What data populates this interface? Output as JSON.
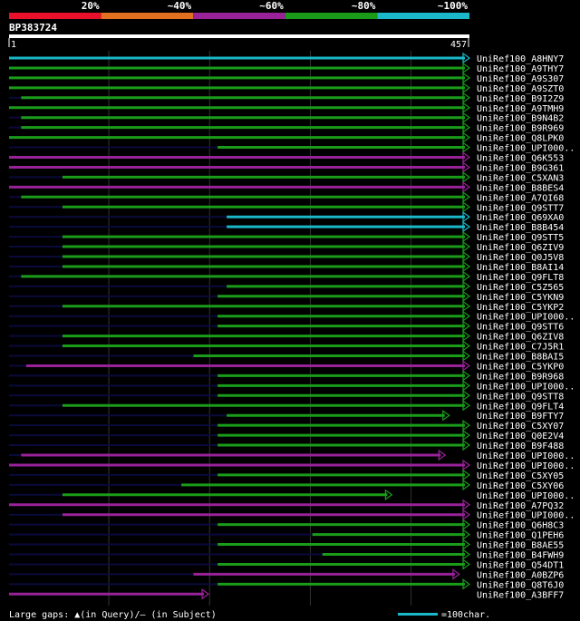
{
  "chart_data": {
    "type": "alignment-overview",
    "title": "BP383724",
    "query_start": "1",
    "query_end": "457",
    "query_length": 457,
    "identity_scale": [
      {
        "label": "20%",
        "color": "#e8102a"
      },
      {
        "label": "~40%",
        "color": "#e07020"
      },
      {
        "label": "~60%",
        "color": "#992299"
      },
      {
        "label": "~80%",
        "color": "#1a9c1a"
      },
      {
        "label": "~100%",
        "color": "#1ab8c8"
      }
    ],
    "colors": {
      "cyan": "#1ab8c8",
      "green": "#1a9c1a",
      "magenta": "#992299",
      "dim": "#0a0a3c",
      "grid": "#333333"
    },
    "hits": [
      {
        "id": "UniRef100_A8HNY7",
        "start": 1,
        "end": 457,
        "color": "cyan"
      },
      {
        "id": "UniRef100_A9THY7",
        "start": 1,
        "end": 457,
        "color": "green"
      },
      {
        "id": "UniRef100_A9S307",
        "start": 1,
        "end": 457,
        "color": "green"
      },
      {
        "id": "UniRef100_A9SZT0",
        "start": 1,
        "end": 457,
        "color": "green"
      },
      {
        "id": "UniRef100_B9I2Z9",
        "start": 13,
        "end": 457,
        "color": "green"
      },
      {
        "id": "UniRef100_A9TMH9",
        "start": 1,
        "end": 457,
        "color": "green"
      },
      {
        "id": "UniRef100_B9N4B2",
        "start": 13,
        "end": 457,
        "color": "green"
      },
      {
        "id": "UniRef100_B9R969",
        "start": 13,
        "end": 457,
        "color": "green"
      },
      {
        "id": "UniRef100_Q8LPK0",
        "start": 1,
        "end": 457,
        "color": "green"
      },
      {
        "id": "UniRef100_UPI000..",
        "start": 208,
        "end": 457,
        "color": "green"
      },
      {
        "id": "UniRef100_Q6K553",
        "start": 1,
        "end": 457,
        "color": "magenta"
      },
      {
        "id": "UniRef100_B9G361",
        "start": 1,
        "end": 457,
        "color": "magenta"
      },
      {
        "id": "UniRef100_C5XAN3",
        "start": 54,
        "end": 457,
        "color": "green"
      },
      {
        "id": "UniRef100_B8BES4",
        "start": 1,
        "end": 457,
        "color": "magenta"
      },
      {
        "id": "UniRef100_A7QI68",
        "start": 13,
        "end": 457,
        "color": "green"
      },
      {
        "id": "UniRef100_Q9STT7",
        "start": 54,
        "end": 457,
        "color": "green"
      },
      {
        "id": "UniRef100_Q69XA0",
        "start": 217,
        "end": 457,
        "color": "cyan"
      },
      {
        "id": "UniRef100_B8B454",
        "start": 217,
        "end": 457,
        "color": "cyan"
      },
      {
        "id": "UniRef100_Q9STT5",
        "start": 54,
        "end": 457,
        "color": "green"
      },
      {
        "id": "UniRef100_Q6ZIV9",
        "start": 54,
        "end": 457,
        "color": "green"
      },
      {
        "id": "UniRef100_Q0J5V8",
        "start": 54,
        "end": 457,
        "color": "green"
      },
      {
        "id": "UniRef100_B8AI14",
        "start": 54,
        "end": 457,
        "color": "green"
      },
      {
        "id": "UniRef100_Q9FLT8",
        "start": 13,
        "end": 457,
        "color": "green"
      },
      {
        "id": "UniRef100_C5Z565",
        "start": 217,
        "end": 457,
        "color": "green"
      },
      {
        "id": "UniRef100_C5YKN9",
        "start": 208,
        "end": 457,
        "color": "green"
      },
      {
        "id": "UniRef100_C5YKP2",
        "start": 54,
        "end": 457,
        "color": "green"
      },
      {
        "id": "UniRef100_UPI000..",
        "start": 208,
        "end": 457,
        "color": "green"
      },
      {
        "id": "UniRef100_Q9STT6",
        "start": 208,
        "end": 457,
        "color": "green"
      },
      {
        "id": "UniRef100_Q6ZIV8",
        "start": 54,
        "end": 457,
        "color": "green"
      },
      {
        "id": "UniRef100_C7J5R1",
        "start": 54,
        "end": 457,
        "color": "green"
      },
      {
        "id": "UniRef100_B8BAI5",
        "start": 184,
        "end": 457,
        "color": "green"
      },
      {
        "id": "UniRef100_C5YKP0",
        "start": 18,
        "end": 457,
        "color": "magenta"
      },
      {
        "id": "UniRef100_B9R968",
        "start": 208,
        "end": 457,
        "color": "green"
      },
      {
        "id": "UniRef100_UPI000..",
        "start": 208,
        "end": 457,
        "color": "green"
      },
      {
        "id": "UniRef100_Q9STT8",
        "start": 208,
        "end": 457,
        "color": "green"
      },
      {
        "id": "UniRef100_Q9FLT4",
        "start": 54,
        "end": 457,
        "color": "green"
      },
      {
        "id": "UniRef100_B9FTY7",
        "start": 217,
        "end": 437,
        "color": "green"
      },
      {
        "id": "UniRef100_C5XY07",
        "start": 208,
        "end": 457,
        "color": "green"
      },
      {
        "id": "UniRef100_Q0E2V4",
        "start": 208,
        "end": 457,
        "color": "green"
      },
      {
        "id": "UniRef100_B9F488",
        "start": 208,
        "end": 457,
        "color": "green"
      },
      {
        "id": "UniRef100_UPI000..",
        "start": 13,
        "end": 433,
        "color": "magenta"
      },
      {
        "id": "UniRef100_UPI000..",
        "start": 1,
        "end": 457,
        "color": "magenta"
      },
      {
        "id": "UniRef100_C5XY05",
        "start": 208,
        "end": 457,
        "color": "green"
      },
      {
        "id": "UniRef100_C5XY06",
        "start": 172,
        "end": 457,
        "color": "green"
      },
      {
        "id": "UniRef100_UPI000..",
        "start": 54,
        "end": 380,
        "color": "green"
      },
      {
        "id": "UniRef100_A7PQ32",
        "start": 1,
        "end": 457,
        "color": "magenta"
      },
      {
        "id": "UniRef100_UPI000..",
        "start": 54,
        "end": 457,
        "color": "magenta"
      },
      {
        "id": "UniRef100_Q6H8C3",
        "start": 208,
        "end": 457,
        "color": "green"
      },
      {
        "id": "UniRef100_Q1PEH6",
        "start": 302,
        "end": 457,
        "color": "green"
      },
      {
        "id": "UniRef100_B8AE55",
        "start": 208,
        "end": 457,
        "color": "green"
      },
      {
        "id": "UniRef100_B4FWH9",
        "start": 312,
        "end": 457,
        "color": "green"
      },
      {
        "id": "UniRef100_Q54DT1",
        "start": 208,
        "end": 457,
        "color": "green"
      },
      {
        "id": "UniRef100_A0BZP6",
        "start": 184,
        "end": 447,
        "color": "magenta"
      },
      {
        "id": "UniRef100_Q8T6J0",
        "start": 208,
        "end": 457,
        "color": "green"
      },
      {
        "id": "UniRef100_A3BFF7",
        "start": 1,
        "end": 198,
        "color": "magenta"
      }
    ],
    "footer_left": "Large gaps: ▲(in Query)/– (in Subject)",
    "footer_right": "=100char."
  }
}
